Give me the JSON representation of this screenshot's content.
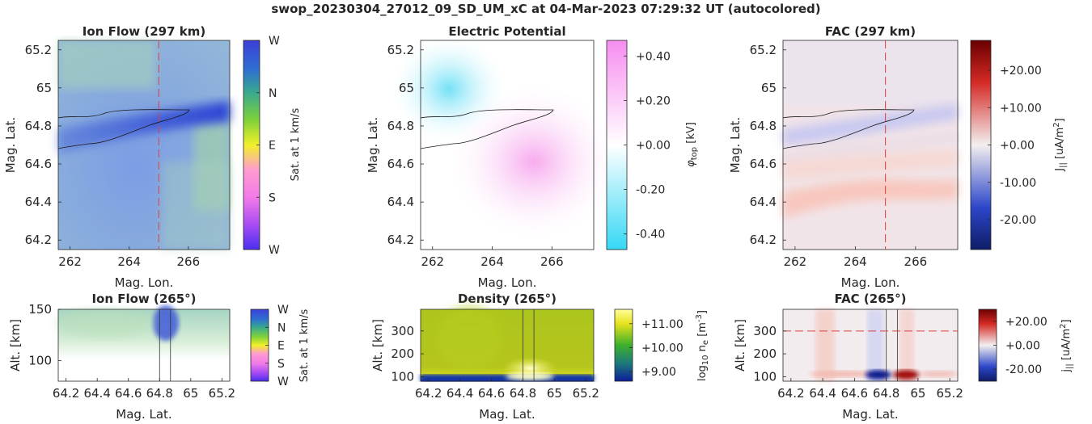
{
  "suptitle": "swop_20230304_27012_09_SD_UM_xC at 04-Mar-2023 07:29:32 UT (autocolored)",
  "chart_data": [
    {
      "id": "ionflow-top",
      "type": "heatmap",
      "title": "Ion Flow (297 km)",
      "xlabel": "Mag. Lon.",
      "ylabel": "Mag. Lat.",
      "xlim": [
        261.6,
        267.4
      ],
      "ylim": [
        64.15,
        65.25
      ],
      "xticks": [
        262,
        264,
        266
      ],
      "yticks": [
        64.2,
        64.4,
        64.6,
        64.8,
        65,
        65.2
      ],
      "ytick_labels": [
        "64.2",
        "64.4",
        "64.6",
        "64.8",
        "65",
        "65.2"
      ],
      "vline_x": 265,
      "colorbar": {
        "label": "Sat. at 1 km/s",
        "tick_labels": [
          "W",
          "N",
          "E",
          "S",
          "W"
        ]
      }
    },
    {
      "id": "potential-top",
      "type": "heatmap",
      "title": "Electric Potential",
      "xlabel": "Mag. Lon.",
      "ylabel": "Mag. Lat.",
      "xlim": [
        261.6,
        267.4
      ],
      "ylim": [
        64.15,
        65.25
      ],
      "xticks": [
        262,
        264,
        266
      ],
      "yticks": [
        64.2,
        64.4,
        64.6,
        64.8,
        65,
        65.2
      ],
      "ytick_labels": [
        "64.2",
        "64.4",
        "64.6",
        "64.8",
        "65",
        "65.2"
      ],
      "colorbar": {
        "label": "φ_top [kV]",
        "ticks": [
          0.4,
          0.2,
          0.0,
          -0.2,
          -0.4
        ],
        "tick_labels": [
          "+0.40",
          "+0.20",
          "+0.00",
          "-0.20",
          "-0.40"
        ],
        "range": [
          -0.47,
          0.47
        ]
      }
    },
    {
      "id": "fac-top",
      "type": "heatmap",
      "title": "FAC (297 km)",
      "xlabel": "Mag. Lon.",
      "ylabel": "Mag. Lat.",
      "xlim": [
        261.6,
        267.4
      ],
      "ylim": [
        64.15,
        65.25
      ],
      "xticks": [
        262,
        264,
        266
      ],
      "yticks": [
        64.2,
        64.4,
        64.6,
        64.8,
        65,
        65.2
      ],
      "ytick_labels": [
        "64.2",
        "64.4",
        "64.6",
        "64.8",
        "65",
        "65.2"
      ],
      "vline_x": 265,
      "colorbar": {
        "label": "J_|| [uA/m^2]",
        "ticks": [
          20,
          10,
          0,
          -10,
          -20
        ],
        "tick_labels": [
          "+20.00",
          "+10.00",
          "+0.00",
          "-10.00",
          "-20.00"
        ],
        "range": [
          -28,
          28
        ]
      }
    },
    {
      "id": "ionflow-bottom",
      "type": "heatmap",
      "title": "Ion Flow (265°)",
      "xlabel": "Mag. Lat.",
      "ylabel": "Alt. [km]",
      "xlim": [
        64.15,
        65.25
      ],
      "ylim": [
        80,
        150
      ],
      "xticks": [
        64.2,
        64.4,
        64.6,
        64.8,
        65,
        65.2
      ],
      "xtick_labels": [
        "64.2",
        "64.4",
        "64.6",
        "64.8",
        "65",
        "65.2"
      ],
      "yticks": [
        100,
        150
      ],
      "vlines_x": [
        64.8,
        64.87
      ],
      "colorbar": {
        "label": "Sat. at 1 km/s",
        "tick_labels": [
          "W",
          "N",
          "E",
          "S",
          "W"
        ]
      }
    },
    {
      "id": "density-bottom",
      "type": "heatmap",
      "title": "Density (265°)",
      "xlabel": "Mag. Lat.",
      "ylabel": "Alt. [km]",
      "xlim": [
        64.15,
        65.25
      ],
      "ylim": [
        80,
        395
      ],
      "xticks": [
        64.2,
        64.4,
        64.6,
        64.8,
        65,
        65.2
      ],
      "xtick_labels": [
        "64.2",
        "64.4",
        "64.6",
        "64.8",
        "65",
        "65.2"
      ],
      "yticks": [
        100,
        200,
        300
      ],
      "vlines_x": [
        64.8,
        64.87
      ],
      "colorbar": {
        "label": "log_10 n_e [m^-3]",
        "ticks": [
          11,
          10,
          9
        ],
        "tick_labels": [
          "+11.00",
          "+10.00",
          "+9.00"
        ],
        "range": [
          8.6,
          11.6
        ]
      }
    },
    {
      "id": "fac-bottom",
      "type": "heatmap",
      "title": "FAC (265°)",
      "xlabel": "Mag. Lat.",
      "ylabel": "Alt. [km]",
      "xlim": [
        64.15,
        65.25
      ],
      "ylim": [
        80,
        395
      ],
      "xticks": [
        64.2,
        64.4,
        64.6,
        64.8,
        65,
        65.2
      ],
      "xtick_labels": [
        "64.2",
        "64.4",
        "64.6",
        "64.8",
        "65",
        "65.2"
      ],
      "yticks": [
        100,
        200,
        300
      ],
      "vlines_x": [
        64.8,
        64.87
      ],
      "hline_y": 300,
      "colorbar": {
        "label": "j_|| [uA/m^2]",
        "ticks": [
          20,
          0,
          -20
        ],
        "tick_labels": [
          "+20.00",
          "+0.00",
          "-20.00"
        ],
        "range": [
          -30,
          30
        ]
      }
    }
  ]
}
